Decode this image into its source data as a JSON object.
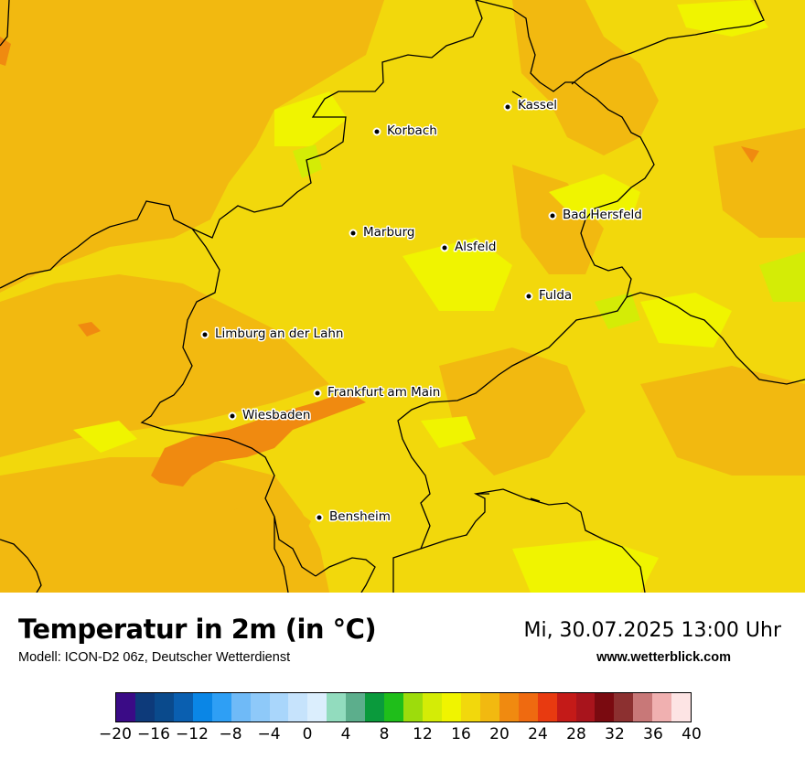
{
  "map": {
    "cities": [
      {
        "name": "Kassel"
      },
      {
        "name": "Korbach"
      },
      {
        "name": "Marburg"
      },
      {
        "name": "Alsfeld"
      },
      {
        "name": "Bad Hersfeld"
      },
      {
        "name": "Fulda"
      },
      {
        "name": "Limburg an der Lahn"
      },
      {
        "name": "Frankfurt am Main"
      },
      {
        "name": "Wiesbaden"
      },
      {
        "name": "Bensheim"
      }
    ]
  },
  "footer": {
    "title": "Temperatur in 2m (in °C)",
    "model": "Modell: ICON-D2 06z, Deutscher Wetterdienst",
    "datetime": "Mi, 30.07.2025 13:00 Uhr",
    "url": "www.wetterblick.com"
  },
  "legend": {
    "colors": [
      "#3a0b86",
      "#0d3a7a",
      "#0a4a8c",
      "#0a5fb0",
      "#0a86e6",
      "#2e9ff5",
      "#6fbaf7",
      "#8ec9f9",
      "#a9d6fb",
      "#c6e3fc",
      "#dbeefd",
      "#92dcbe",
      "#5cae8c",
      "#0a9a3c",
      "#1fbe1a",
      "#9ddc0c",
      "#d4ec06",
      "#f0f400",
      "#f2d80c",
      "#f2b910",
      "#f08a10",
      "#ef6a10",
      "#e83a10",
      "#c41a18",
      "#a8141c",
      "#7a0a10",
      "#8c3030",
      "#c87878",
      "#f0b0b0",
      "#fde4e4"
    ],
    "ticks": [
      "−20",
      "−16",
      "−12",
      "−8",
      "−4",
      "0",
      "4",
      "8",
      "12",
      "16",
      "20",
      "24",
      "28",
      "32",
      "36",
      "40"
    ]
  }
}
